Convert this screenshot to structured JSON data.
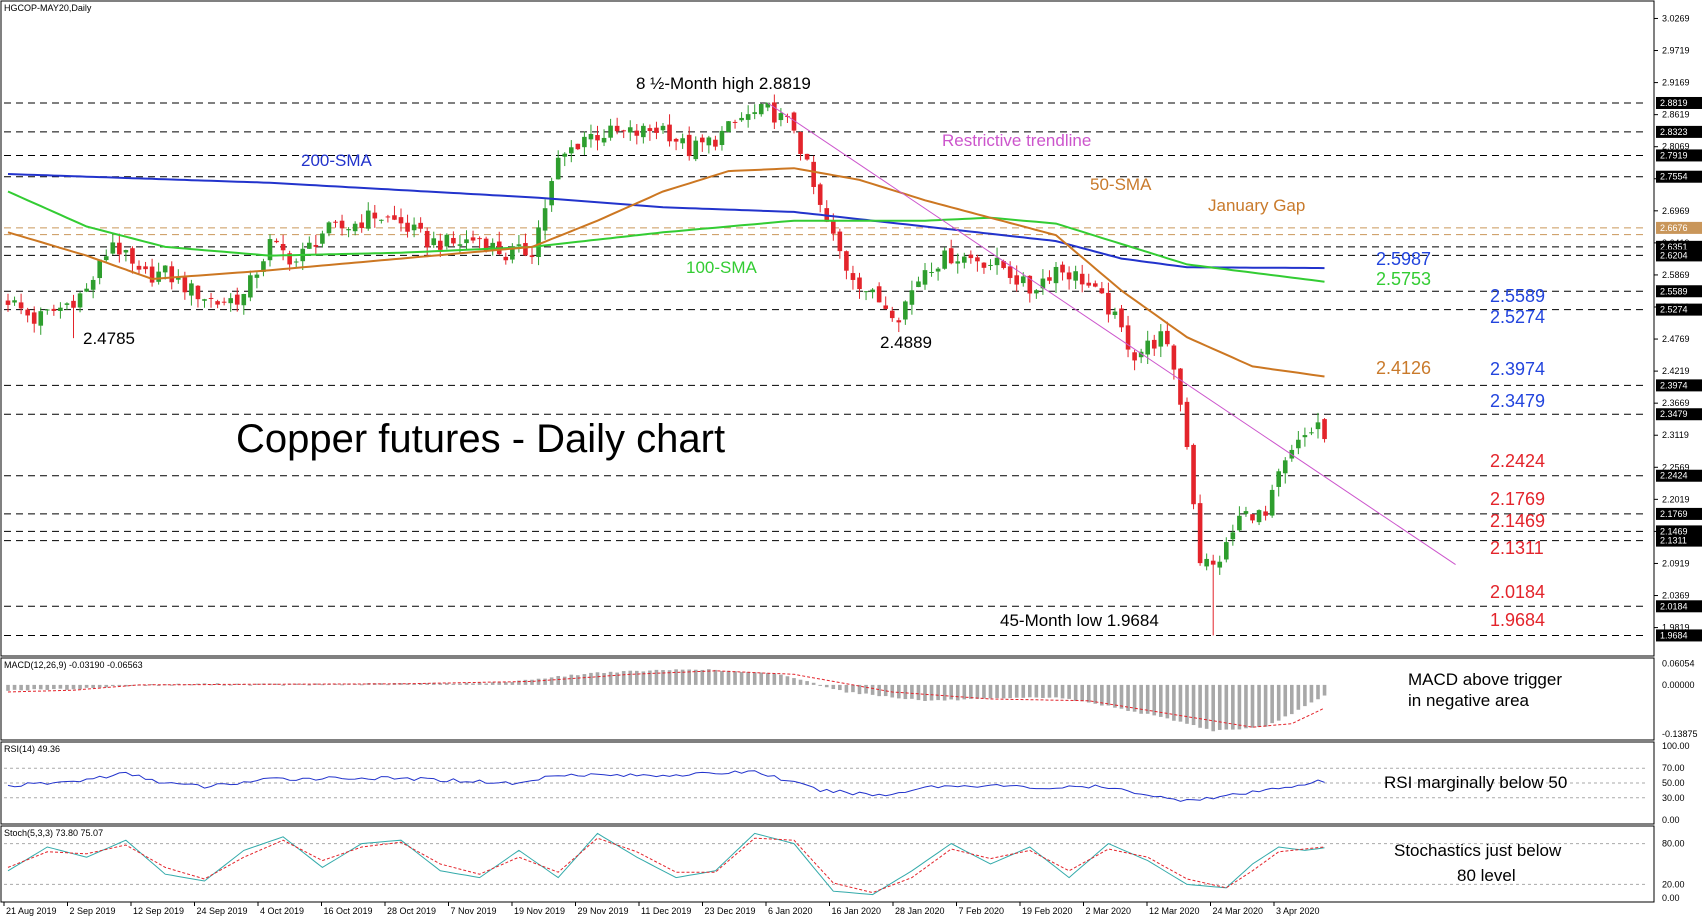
{
  "chart_data": [
    {
      "panel": "price",
      "type": "candlestick",
      "header": "HGCOP-MAY20,Daily",
      "title": "Copper futures - Daily chart",
      "ylim": [
        1.94,
        3.05
      ],
      "y_ticks": [
        "3.0269",
        "2.9719",
        "2.9169",
        "2.8619",
        "2.8069",
        "2.7519",
        "2.6969",
        "2.6419",
        "2.5869",
        "2.5319",
        "2.4769",
        "2.4219",
        "2.3669",
        "2.3119",
        "2.2569",
        "2.2019",
        "2.1469",
        "2.0919",
        "2.0369",
        "1.9819"
      ],
      "x_labels": [
        "21 Aug 2019",
        "2 Sep 2019",
        "12 Sep 2019",
        "24 Sep 2019",
        "4 Oct 2019",
        "16 Oct 2019",
        "28 Oct 2019",
        "7 Nov 2019",
        "19 Nov 2019",
        "29 Nov 2019",
        "11 Dec 2019",
        "23 Dec 2019",
        "6 Jan 2020",
        "16 Jan 2020",
        "28 Jan 2020",
        "7 Feb 2020",
        "19 Feb 2020",
        "2 Mar 2020",
        "12 Mar 2020",
        "24 Mar 2020",
        "3 Apr 2020"
      ],
      "levels": [
        {
          "value": 2.8819,
          "color": "#000000",
          "badge": "2.8819"
        },
        {
          "value": 2.8323,
          "color": "#000000",
          "badge": "2.8323"
        },
        {
          "value": 2.7919,
          "color": "#000000",
          "badge": "2.7919"
        },
        {
          "value": 2.7554,
          "color": "#000000",
          "badge": "2.7554"
        },
        {
          "value": 2.6676,
          "color": "#c9965a",
          "badge": "2.6676"
        },
        {
          "value": 2.656,
          "color": "#c9965a",
          "badge": ""
        },
        {
          "value": 2.6351,
          "color": "#000000",
          "badge": "2.6351"
        },
        {
          "value": 2.6204,
          "color": "#000000",
          "badge": "2.6204"
        },
        {
          "value": 2.5589,
          "color": "#000000",
          "badge": "2.5589"
        },
        {
          "value": 2.5274,
          "color": "#000000",
          "badge": "2.5274"
        },
        {
          "value": 2.3974,
          "color": "#000000",
          "badge": "2.3974"
        },
        {
          "value": 2.3479,
          "color": "#000000",
          "badge": "2.3479"
        },
        {
          "value": 2.2424,
          "color": "#000000",
          "badge": "2.2424"
        },
        {
          "value": 2.1769,
          "color": "#000000",
          "badge": "2.1769"
        },
        {
          "value": 2.1469,
          "color": "#000000",
          "badge": "2.1469"
        },
        {
          "value": 2.1311,
          "color": "#000000",
          "badge": "2.1311"
        },
        {
          "value": 2.0184,
          "color": "#000000",
          "badge": "2.0184"
        },
        {
          "value": 1.9684,
          "color": "#000000",
          "badge": "1.9684"
        }
      ],
      "close_anchors": [
        [
          0,
          2.545
        ],
        [
          4,
          2.51
        ],
        [
          8,
          2.53
        ],
        [
          12,
          2.56
        ],
        [
          16,
          2.645
        ],
        [
          20,
          2.585
        ],
        [
          24,
          2.59
        ],
        [
          28,
          2.56
        ],
        [
          32,
          2.54
        ],
        [
          36,
          2.55
        ],
        [
          40,
          2.64
        ],
        [
          44,
          2.61
        ],
        [
          48,
          2.66
        ],
        [
          52,
          2.67
        ],
        [
          56,
          2.69
        ],
        [
          60,
          2.675
        ],
        [
          64,
          2.645
        ],
        [
          68,
          2.64
        ],
        [
          72,
          2.65
        ],
        [
          76,
          2.62
        ],
        [
          80,
          2.63
        ],
        [
          84,
          2.78
        ],
        [
          88,
          2.825
        ],
        [
          92,
          2.83
        ],
        [
          96,
          2.83
        ],
        [
          100,
          2.84
        ],
        [
          104,
          2.8
        ],
        [
          108,
          2.82
        ],
        [
          112,
          2.855
        ],
        [
          116,
          2.87
        ],
        [
          120,
          2.84
        ],
        [
          124,
          2.7
        ],
        [
          128,
          2.6
        ],
        [
          132,
          2.55
        ],
        [
          136,
          2.52
        ],
        [
          140,
          2.6
        ],
        [
          144,
          2.62
        ],
        [
          148,
          2.615
        ],
        [
          152,
          2.6
        ],
        [
          156,
          2.56
        ],
        [
          160,
          2.6
        ],
        [
          164,
          2.58
        ],
        [
          168,
          2.53
        ],
        [
          172,
          2.45
        ],
        [
          176,
          2.48
        ],
        [
          178,
          2.43
        ],
        [
          180,
          2.3
        ],
        [
          182,
          2.1
        ],
        [
          184,
          2.085
        ],
        [
          186,
          2.12
        ],
        [
          188,
          2.17
        ],
        [
          190,
          2.18
        ],
        [
          192,
          2.17
        ],
        [
          194,
          2.24
        ],
        [
          196,
          2.28
        ],
        [
          198,
          2.31
        ],
        [
          200,
          2.33
        ],
        [
          201,
          2.305
        ]
      ],
      "series": [
        {
          "name": "200-SMA",
          "color": "#2233cc",
          "anchors": [
            [
              0,
              2.76
            ],
            [
              40,
              2.745
            ],
            [
              80,
              2.72
            ],
            [
              100,
              2.703
            ],
            [
              120,
              2.695
            ],
            [
              140,
              2.67
            ],
            [
              160,
              2.645
            ],
            [
              170,
              2.615
            ],
            [
              180,
              2.6
            ],
            [
              201,
              2.5987
            ]
          ],
          "value_label": "2.5987"
        },
        {
          "name": "100-SMA",
          "color": "#33cc33",
          "anchors": [
            [
              0,
              2.73
            ],
            [
              12,
              2.67
            ],
            [
              24,
              2.635
            ],
            [
              40,
              2.62
            ],
            [
              60,
              2.625
            ],
            [
              80,
              2.635
            ],
            [
              100,
              2.66
            ],
            [
              120,
              2.68
            ],
            [
              140,
              2.68
            ],
            [
              150,
              2.685
            ],
            [
              160,
              2.675
            ],
            [
              170,
              2.64
            ],
            [
              180,
              2.605
            ],
            [
              201,
              2.5753
            ]
          ],
          "value_label": "2.5753"
        },
        {
          "name": "50-SMA",
          "color": "#cc7722",
          "anchors": [
            [
              0,
              2.66
            ],
            [
              12,
              2.62
            ],
            [
              22,
              2.58
            ],
            [
              40,
              2.595
            ],
            [
              60,
              2.615
            ],
            [
              80,
              2.635
            ],
            [
              90,
              2.68
            ],
            [
              100,
              2.73
            ],
            [
              110,
              2.765
            ],
            [
              120,
              2.77
            ],
            [
              130,
              2.75
            ],
            [
              140,
              2.715
            ],
            [
              150,
              2.685
            ],
            [
              160,
              2.655
            ],
            [
              170,
              2.56
            ],
            [
              180,
              2.48
            ],
            [
              190,
              2.43
            ],
            [
              201,
              2.4126
            ]
          ],
          "value_label": "2.4126"
        }
      ],
      "trendline": {
        "name": "Restrictive trendline",
        "color": "#cc55cc",
        "from": [
          116,
          2.8819
        ],
        "to": [
          221,
          2.09
        ]
      },
      "annotations": {
        "high": "8 ½-Month high 2.8819",
        "low_a": "2.4785",
        "low_b": "2.4889",
        "low_45m": "45-Month low 1.9684",
        "sma200": "200-SMA",
        "sma100": "100-SMA",
        "sma50": "50-SMA",
        "trend": "Restrictive trendline",
        "gap": "January Gap",
        "lvl_25589": "2.5589",
        "lvl_25274": "2.5274",
        "lvl_23974": "2.3974",
        "lvl_23479": "2.3479",
        "lvl_22424": "2.2424",
        "lvl_21769": "2.1769",
        "lvl_21469": "2.1469",
        "lvl_21311": "2.1311",
        "lvl_20184": "2.0184",
        "lvl_19684": "1.9684"
      }
    },
    {
      "panel": "macd",
      "type": "bar",
      "header": "MACD(12,26,9) -0.03190 -0.06563",
      "ylim": [
        -0.145,
        0.065
      ],
      "y_ticks": [
        "0.06054",
        "0.00000",
        "-0.13875"
      ],
      "hist_anchors": [
        [
          0,
          -0.015
        ],
        [
          10,
          -0.012
        ],
        [
          20,
          0.0
        ],
        [
          30,
          0.003
        ],
        [
          45,
          0.002
        ],
        [
          60,
          0.004
        ],
        [
          75,
          0.006
        ],
        [
          90,
          0.035
        ],
        [
          105,
          0.045
        ],
        [
          118,
          0.03
        ],
        [
          128,
          -0.02
        ],
        [
          140,
          -0.045
        ],
        [
          150,
          -0.04
        ],
        [
          160,
          -0.035
        ],
        [
          168,
          -0.06
        ],
        [
          178,
          -0.1
        ],
        [
          184,
          -0.13
        ],
        [
          192,
          -0.12
        ],
        [
          201,
          -0.0319
        ]
      ],
      "signal_anchors": [
        [
          0,
          -0.02
        ],
        [
          10,
          -0.015
        ],
        [
          20,
          0.0
        ],
        [
          40,
          0.002
        ],
        [
          60,
          0.003
        ],
        [
          80,
          0.01
        ],
        [
          95,
          0.03
        ],
        [
          108,
          0.04
        ],
        [
          120,
          0.03
        ],
        [
          135,
          -0.02
        ],
        [
          150,
          -0.04
        ],
        [
          165,
          -0.045
        ],
        [
          180,
          -0.09
        ],
        [
          190,
          -0.12
        ],
        [
          196,
          -0.11
        ],
        [
          201,
          -0.0656
        ]
      ],
      "annotation": [
        "MACD above trigger",
        "in negative area"
      ]
    },
    {
      "panel": "rsi",
      "type": "line",
      "header": "RSI(14) 49.36",
      "ylim": [
        0,
        100
      ],
      "y_ticks": [
        "100.00",
        "70.00",
        "50.00",
        "30.00",
        "0.00"
      ],
      "levels": [
        70,
        50,
        30
      ],
      "anchors": [
        [
          0,
          46
        ],
        [
          10,
          52
        ],
        [
          18,
          63
        ],
        [
          24,
          50
        ],
        [
          30,
          45
        ],
        [
          40,
          55
        ],
        [
          50,
          57
        ],
        [
          60,
          56
        ],
        [
          70,
          53
        ],
        [
          78,
          49
        ],
        [
          84,
          62
        ],
        [
          96,
          60
        ],
        [
          106,
          62
        ],
        [
          114,
          66
        ],
        [
          124,
          40
        ],
        [
          134,
          33
        ],
        [
          140,
          45
        ],
        [
          150,
          47
        ],
        [
          158,
          43
        ],
        [
          166,
          45
        ],
        [
          172,
          38
        ],
        [
          178,
          27
        ],
        [
          184,
          30
        ],
        [
          190,
          37
        ],
        [
          196,
          46
        ],
        [
          200,
          52
        ],
        [
          201,
          49.36
        ]
      ],
      "annotation": "RSI marginally below 50"
    },
    {
      "panel": "stochastic",
      "type": "line",
      "header": "Stoch(5,3,3) 73.80 75.07",
      "ylim": [
        0,
        100
      ],
      "y_ticks": [
        "80.00",
        "20.00",
        "0.00"
      ],
      "levels": [
        80,
        20
      ],
      "k_anchors": [
        [
          0,
          40
        ],
        [
          6,
          75
        ],
        [
          12,
          60
        ],
        [
          18,
          85
        ],
        [
          24,
          35
        ],
        [
          30,
          25
        ],
        [
          36,
          70
        ],
        [
          42,
          90
        ],
        [
          48,
          45
        ],
        [
          54,
          80
        ],
        [
          60,
          85
        ],
        [
          66,
          40
        ],
        [
          72,
          30
        ],
        [
          78,
          70
        ],
        [
          84,
          30
        ],
        [
          90,
          95
        ],
        [
          96,
          60
        ],
        [
          102,
          30
        ],
        [
          108,
          40
        ],
        [
          114,
          95
        ],
        [
          120,
          80
        ],
        [
          126,
          10
        ],
        [
          132,
          5
        ],
        [
          138,
          40
        ],
        [
          144,
          80
        ],
        [
          150,
          50
        ],
        [
          156,
          75
        ],
        [
          162,
          30
        ],
        [
          168,
          80
        ],
        [
          174,
          55
        ],
        [
          180,
          20
        ],
        [
          186,
          15
        ],
        [
          190,
          50
        ],
        [
          194,
          75
        ],
        [
          198,
          70
        ],
        [
          201,
          73.8
        ]
      ],
      "d_anchors": [
        [
          0,
          45
        ],
        [
          6,
          68
        ],
        [
          12,
          65
        ],
        [
          18,
          78
        ],
        [
          24,
          45
        ],
        [
          30,
          28
        ],
        [
          36,
          60
        ],
        [
          42,
          85
        ],
        [
          48,
          55
        ],
        [
          54,
          75
        ],
        [
          60,
          82
        ],
        [
          66,
          50
        ],
        [
          72,
          35
        ],
        [
          78,
          60
        ],
        [
          84,
          38
        ],
        [
          90,
          88
        ],
        [
          96,
          68
        ],
        [
          102,
          38
        ],
        [
          108,
          38
        ],
        [
          114,
          88
        ],
        [
          120,
          85
        ],
        [
          126,
          22
        ],
        [
          132,
          8
        ],
        [
          138,
          30
        ],
        [
          144,
          72
        ],
        [
          150,
          58
        ],
        [
          156,
          70
        ],
        [
          162,
          40
        ],
        [
          168,
          72
        ],
        [
          174,
          60
        ],
        [
          180,
          28
        ],
        [
          186,
          15
        ],
        [
          190,
          40
        ],
        [
          194,
          68
        ],
        [
          198,
          72
        ],
        [
          201,
          75.07
        ]
      ],
      "annotation": [
        "Stochastics just below",
        "80 level"
      ]
    }
  ],
  "colors": {
    "bull": "#2e9e2e",
    "bear": "#e3242b",
    "price_blue": "#2244dd",
    "price_red": "#e3242b",
    "sma50_label": "#c97a2b",
    "sma100_label": "#33cc33",
    "trend_label": "#cc55cc",
    "gap_label": "#c97a2b",
    "macd_hist": "#a8a8a8",
    "macd_signal": "#e3242b",
    "rsi_line": "#2233cc",
    "stoch_k": "#33aaaa",
    "stoch_d": "#e3242b"
  }
}
